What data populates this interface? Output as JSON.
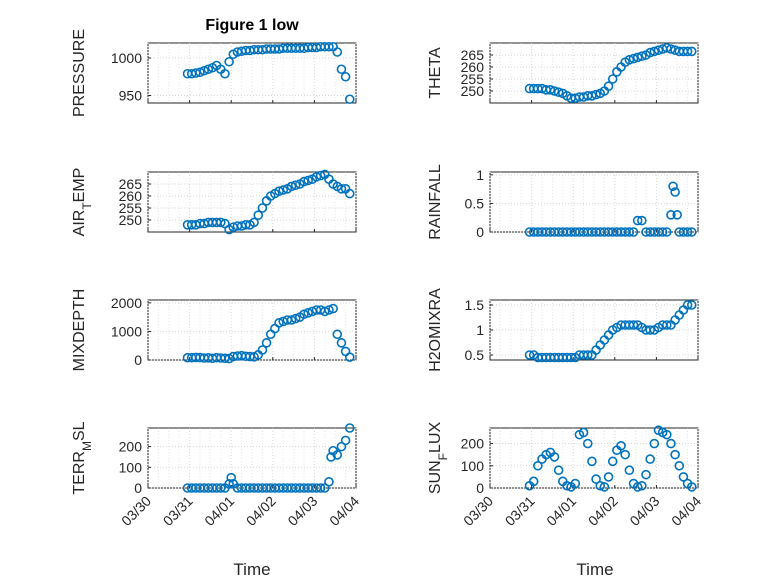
{
  "figure": {
    "title": "Figure 1 low",
    "marker_color": "#0072bd",
    "grid": "dotted, on",
    "x_tick_labels": [
      "03/30",
      "03/31",
      "04/01",
      "04/02",
      "04/03",
      "04/04"
    ],
    "xlabel": "Time"
  },
  "chart_data": [
    {
      "type": "scatter",
      "ylabel": "PRESSURE",
      "xlim": [
        0,
        5
      ],
      "ylim": [
        940,
        1020
      ],
      "yticks": [
        950,
        1000
      ],
      "series": [
        {
          "x": [
            0.95,
            1.05,
            1.15,
            1.25,
            1.35,
            1.45,
            1.55,
            1.65,
            1.75,
            1.85,
            1.95,
            2.05,
            2.15,
            2.25,
            2.35,
            2.45,
            2.55,
            2.65,
            2.75,
            2.85,
            2.95,
            3.05,
            3.15,
            3.25,
            3.35,
            3.45,
            3.55,
            3.65,
            3.75,
            3.85,
            3.95,
            4.05,
            4.15,
            4.25,
            4.35,
            4.45,
            4.55,
            4.65,
            4.75,
            4.85
          ],
          "y": [
            979,
            979,
            980,
            981,
            983,
            985,
            987,
            990,
            985,
            979,
            995,
            1005,
            1008,
            1009,
            1010,
            1010,
            1011,
            1011,
            1011,
            1012,
            1012,
            1012,
            1012,
            1013,
            1013,
            1013,
            1013,
            1013,
            1013,
            1014,
            1014,
            1014,
            1015,
            1015,
            1015,
            1015,
            1008,
            985,
            975,
            945
          ]
        }
      ]
    },
    {
      "type": "scatter",
      "ylabel": "THETA",
      "xlim": [
        0,
        5
      ],
      "ylim": [
        245,
        270
      ],
      "yticks": [
        250,
        255,
        260,
        265
      ],
      "series": [
        {
          "x": [
            0.95,
            1.05,
            1.15,
            1.25,
            1.35,
            1.45,
            1.55,
            1.65,
            1.75,
            1.85,
            1.95,
            2.05,
            2.15,
            2.25,
            2.35,
            2.45,
            2.55,
            2.65,
            2.75,
            2.85,
            2.95,
            3.05,
            3.15,
            3.25,
            3.35,
            3.45,
            3.55,
            3.65,
            3.75,
            3.85,
            3.95,
            4.05,
            4.15,
            4.25,
            4.35,
            4.45,
            4.55,
            4.65,
            4.75,
            4.85
          ],
          "y": [
            251,
            251,
            251,
            251,
            250.5,
            250.5,
            250,
            249.5,
            249,
            248,
            247,
            247,
            247.5,
            247.5,
            248,
            248,
            248.5,
            249,
            250,
            252,
            255,
            258,
            260,
            262,
            263,
            263.5,
            264,
            264.5,
            265,
            266,
            266.5,
            267,
            267.5,
            268,
            267.5,
            267,
            266.5,
            266.5,
            266.5,
            266.5
          ]
        }
      ]
    },
    {
      "type": "scatter",
      "ylabel": "AIR_TEMP",
      "xlim": [
        0,
        5
      ],
      "ylim": [
        245,
        270
      ],
      "yticks": [
        250,
        255,
        260,
        265
      ],
      "series": [
        {
          "x": [
            0.95,
            1.05,
            1.15,
            1.25,
            1.35,
            1.45,
            1.55,
            1.65,
            1.75,
            1.85,
            1.95,
            2.05,
            2.15,
            2.25,
            2.35,
            2.45,
            2.55,
            2.65,
            2.75,
            2.85,
            2.95,
            3.05,
            3.15,
            3.25,
            3.35,
            3.45,
            3.55,
            3.65,
            3.75,
            3.85,
            3.95,
            4.05,
            4.15,
            4.25,
            4.35,
            4.45,
            4.55,
            4.65,
            4.75,
            4.85
          ],
          "y": [
            248,
            248,
            248,
            248.5,
            248.5,
            249,
            249,
            249,
            249,
            248.5,
            246,
            247,
            247.5,
            247.5,
            248,
            248,
            249,
            252,
            255,
            258,
            260,
            261,
            262,
            262.5,
            263,
            264,
            264.5,
            265,
            266,
            266.5,
            267,
            268,
            268.5,
            269,
            267,
            265,
            264,
            263,
            263,
            261
          ]
        }
      ]
    },
    {
      "type": "scatter",
      "ylabel": "RAINFALL",
      "xlim": [
        0,
        5
      ],
      "ylim": [
        0,
        1.05
      ],
      "yticks": [
        0,
        0.5,
        1
      ],
      "series": [
        {
          "x": [
            0.95,
            1.05,
            1.15,
            1.25,
            1.35,
            1.45,
            1.55,
            1.65,
            1.75,
            1.85,
            1.95,
            2.05,
            2.15,
            2.25,
            2.35,
            2.45,
            2.55,
            2.65,
            2.75,
            2.85,
            2.95,
            3.05,
            3.15,
            3.25,
            3.35,
            3.45,
            3.55,
            3.65,
            3.75,
            3.85,
            3.95,
            4.05,
            4.15,
            4.25,
            4.35,
            4.4,
            4.45,
            4.5,
            4.55,
            4.65,
            4.75,
            4.85
          ],
          "y": [
            0,
            0,
            0,
            0,
            0,
            0,
            0,
            0,
            0,
            0,
            0,
            0,
            0,
            0,
            0,
            0,
            0,
            0,
            0,
            0,
            0,
            0,
            0,
            0,
            0,
            0,
            0.2,
            0.2,
            0,
            0,
            0,
            0,
            0,
            0,
            0.3,
            0.8,
            0.7,
            0.3,
            0,
            0,
            0,
            0
          ]
        }
      ]
    },
    {
      "type": "scatter",
      "ylabel": "MIXDEPTH",
      "xlim": [
        0,
        5
      ],
      "ylim": [
        0,
        2100
      ],
      "yticks": [
        0,
        1000,
        2000
      ],
      "series": [
        {
          "x": [
            0.95,
            1.05,
            1.15,
            1.25,
            1.35,
            1.45,
            1.55,
            1.65,
            1.75,
            1.85,
            1.95,
            2.05,
            2.15,
            2.25,
            2.35,
            2.45,
            2.55,
            2.65,
            2.75,
            2.85,
            2.95,
            3.05,
            3.15,
            3.25,
            3.35,
            3.45,
            3.55,
            3.65,
            3.75,
            3.85,
            3.95,
            4.05,
            4.15,
            4.25,
            4.35,
            4.45,
            4.55,
            4.65,
            4.75,
            4.85
          ],
          "y": [
            80,
            80,
            90,
            85,
            70,
            75,
            60,
            80,
            70,
            60,
            50,
            120,
            140,
            150,
            130,
            120,
            110,
            180,
            350,
            600,
            900,
            1100,
            1300,
            1350,
            1400,
            1400,
            1450,
            1500,
            1600,
            1650,
            1700,
            1750,
            1750,
            1700,
            1750,
            1800,
            900,
            600,
            300,
            100
          ]
        }
      ]
    },
    {
      "type": "scatter",
      "ylabel": "H2OMIXRA",
      "xlim": [
        0,
        5
      ],
      "ylim": [
        0.4,
        1.6
      ],
      "yticks": [
        0.5,
        1,
        1.5
      ],
      "series": [
        {
          "x": [
            0.95,
            1.05,
            1.15,
            1.25,
            1.35,
            1.45,
            1.55,
            1.65,
            1.75,
            1.85,
            1.95,
            2.05,
            2.15,
            2.25,
            2.35,
            2.45,
            2.55,
            2.65,
            2.75,
            2.85,
            2.95,
            3.05,
            3.15,
            3.25,
            3.35,
            3.45,
            3.55,
            3.65,
            3.75,
            3.85,
            3.95,
            4.05,
            4.15,
            4.25,
            4.35,
            4.45,
            4.55,
            4.65,
            4.75,
            4.85
          ],
          "y": [
            0.5,
            0.5,
            0.45,
            0.45,
            0.45,
            0.45,
            0.45,
            0.45,
            0.45,
            0.45,
            0.45,
            0.45,
            0.5,
            0.5,
            0.5,
            0.5,
            0.6,
            0.7,
            0.8,
            0.9,
            1.0,
            1.05,
            1.1,
            1.1,
            1.1,
            1.1,
            1.1,
            1.05,
            1.0,
            1.0,
            1.0,
            1.05,
            1.1,
            1.1,
            1.1,
            1.2,
            1.3,
            1.4,
            1.5,
            1.5
          ]
        }
      ]
    },
    {
      "type": "scatter",
      "ylabel": "TERR_MSL",
      "xlim": [
        0,
        5
      ],
      "ylim": [
        0,
        290
      ],
      "yticks": [
        0,
        100,
        200
      ],
      "series": [
        {
          "x": [
            0.95,
            1.05,
            1.15,
            1.25,
            1.35,
            1.45,
            1.55,
            1.65,
            1.75,
            1.85,
            1.95,
            2.0,
            2.05,
            2.15,
            2.25,
            2.35,
            2.45,
            2.55,
            2.65,
            2.75,
            2.85,
            2.95,
            3.05,
            3.15,
            3.25,
            3.35,
            3.45,
            3.55,
            3.65,
            3.75,
            3.85,
            3.95,
            4.05,
            4.15,
            4.25,
            4.35,
            4.4,
            4.45,
            4.55,
            4.65,
            4.75,
            4.85
          ],
          "y": [
            0,
            0,
            0,
            0,
            0,
            0,
            0,
            0,
            0,
            0,
            20,
            50,
            20,
            0,
            0,
            0,
            0,
            0,
            0,
            0,
            0,
            0,
            0,
            0,
            0,
            0,
            0,
            0,
            0,
            0,
            0,
            0,
            0,
            0,
            0,
            30,
            150,
            180,
            160,
            200,
            230,
            290
          ]
        }
      ]
    },
    {
      "type": "scatter",
      "ylabel": "SUN_FLUX",
      "xlim": [
        0,
        5
      ],
      "ylim": [
        0,
        270
      ],
      "yticks": [
        0,
        100,
        200
      ],
      "series": [
        {
          "x": [
            0.95,
            1.05,
            1.15,
            1.25,
            1.35,
            1.45,
            1.55,
            1.65,
            1.75,
            1.85,
            1.95,
            2.05,
            2.15,
            2.25,
            2.35,
            2.45,
            2.55,
            2.65,
            2.75,
            2.85,
            2.95,
            3.05,
            3.15,
            3.25,
            3.35,
            3.45,
            3.55,
            3.65,
            3.75,
            3.85,
            3.95,
            4.05,
            4.15,
            4.25,
            4.35,
            4.45,
            4.55,
            4.65,
            4.75,
            4.85
          ],
          "y": [
            10,
            30,
            100,
            130,
            150,
            160,
            140,
            80,
            30,
            10,
            5,
            20,
            240,
            250,
            200,
            120,
            40,
            10,
            5,
            50,
            120,
            170,
            190,
            150,
            80,
            20,
            5,
            10,
            60,
            130,
            200,
            260,
            250,
            240,
            200,
            150,
            100,
            50,
            20,
            5
          ]
        }
      ]
    }
  ]
}
